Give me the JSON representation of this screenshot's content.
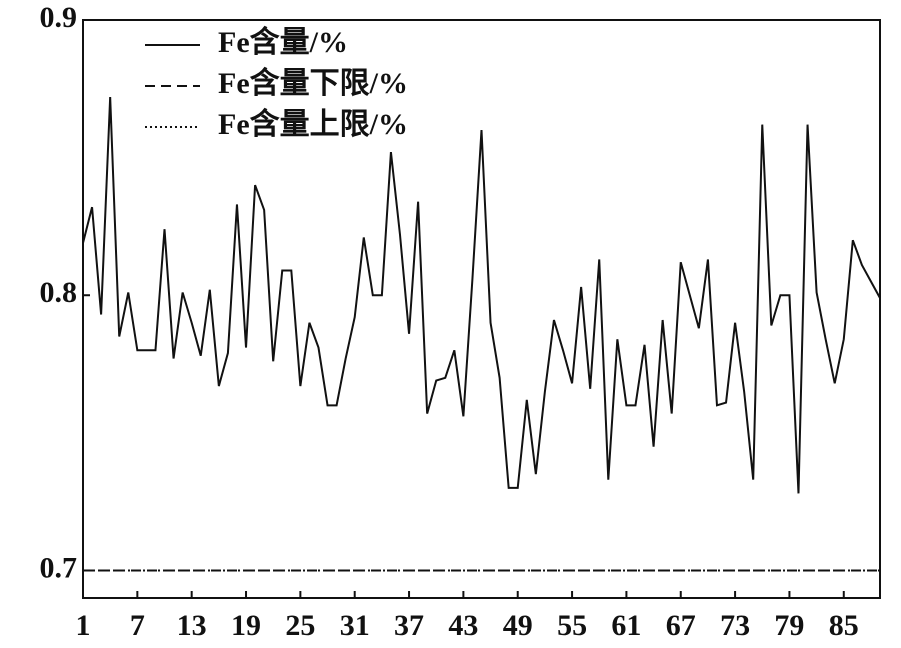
{
  "chart_data": {
    "type": "line",
    "x": [
      1,
      2,
      3,
      4,
      5,
      6,
      7,
      8,
      9,
      10,
      11,
      12,
      13,
      14,
      15,
      16,
      17,
      18,
      19,
      20,
      21,
      22,
      23,
      24,
      25,
      26,
      27,
      28,
      29,
      30,
      31,
      32,
      33,
      34,
      35,
      36,
      37,
      38,
      39,
      40,
      41,
      42,
      43,
      44,
      45,
      46,
      47,
      48,
      49,
      50,
      51,
      52,
      53,
      54,
      55,
      56,
      57,
      58,
      59,
      60,
      61,
      62,
      63,
      64,
      65,
      66,
      67,
      68,
      69,
      70,
      71,
      72,
      73,
      74,
      75,
      76,
      77,
      78,
      79,
      80,
      81,
      82,
      83,
      84,
      85,
      86,
      87,
      88,
      89
    ],
    "series": [
      {
        "name": "Fe含量/%",
        "color": "#111111",
        "dash": "solid",
        "values": [
          0.819,
          0.832,
          0.793,
          0.872,
          0.785,
          0.801,
          0.78,
          0.78,
          0.78,
          0.824,
          0.777,
          0.801,
          0.79,
          0.778,
          0.802,
          0.767,
          0.779,
          0.833,
          0.781,
          0.84,
          0.831,
          0.776,
          0.809,
          0.809,
          0.767,
          0.79,
          0.781,
          0.76,
          0.76,
          0.777,
          0.792,
          0.821,
          0.8,
          0.8,
          0.852,
          0.822,
          0.786,
          0.834,
          0.757,
          0.769,
          0.77,
          0.78,
          0.756,
          0.806,
          0.86,
          0.79,
          0.77,
          0.73,
          0.73,
          0.762,
          0.735,
          0.765,
          0.791,
          0.78,
          0.768,
          0.803,
          0.766,
          0.813,
          0.733,
          0.784,
          0.76,
          0.76,
          0.782,
          0.745,
          0.791,
          0.757,
          0.812,
          0.8,
          0.788,
          0.813,
          0.76,
          0.761,
          0.79,
          0.765,
          0.733,
          0.862,
          0.789,
          0.8,
          0.8,
          0.728,
          0.862,
          0.801,
          0.784,
          0.768,
          0.784,
          0.82,
          0.811,
          0.805,
          0.799
        ]
      },
      {
        "name": "Fe含量下限/%",
        "color": "#111111",
        "dash": "dashed",
        "values": [
          0.7,
          0.7,
          0.7,
          0.7,
          0.7,
          0.7,
          0.7,
          0.7,
          0.7,
          0.7,
          0.7,
          0.7,
          0.7,
          0.7,
          0.7,
          0.7,
          0.7,
          0.7,
          0.7,
          0.7,
          0.7,
          0.7,
          0.7,
          0.7,
          0.7,
          0.7,
          0.7,
          0.7,
          0.7,
          0.7,
          0.7,
          0.7,
          0.7,
          0.7,
          0.7,
          0.7,
          0.7,
          0.7,
          0.7,
          0.7,
          0.7,
          0.7,
          0.7,
          0.7,
          0.7,
          0.7,
          0.7,
          0.7,
          0.7,
          0.7,
          0.7,
          0.7,
          0.7,
          0.7,
          0.7,
          0.7,
          0.7,
          0.7,
          0.7,
          0.7,
          0.7,
          0.7,
          0.7,
          0.7,
          0.7,
          0.7,
          0.7,
          0.7,
          0.7,
          0.7,
          0.7,
          0.7,
          0.7,
          0.7,
          0.7,
          0.7,
          0.7,
          0.7,
          0.7,
          0.7,
          0.7,
          0.7,
          0.7,
          0.7,
          0.7,
          0.7,
          0.7,
          0.7,
          0.7
        ]
      },
      {
        "name": "Fe含量上限/%",
        "color": "#111111",
        "dash": "dotted",
        "values": [
          0.7,
          0.7,
          0.7,
          0.7,
          0.7,
          0.7,
          0.7,
          0.7,
          0.7,
          0.7,
          0.7,
          0.7,
          0.7,
          0.7,
          0.7,
          0.7,
          0.7,
          0.7,
          0.7,
          0.7,
          0.7,
          0.7,
          0.7,
          0.7,
          0.7,
          0.7,
          0.7,
          0.7,
          0.7,
          0.7,
          0.7,
          0.7,
          0.7,
          0.7,
          0.7,
          0.7,
          0.7,
          0.7,
          0.7,
          0.7,
          0.7,
          0.7,
          0.7,
          0.7,
          0.7,
          0.7,
          0.7,
          0.7,
          0.7,
          0.7,
          0.7,
          0.7,
          0.7,
          0.7,
          0.7,
          0.7,
          0.7,
          0.7,
          0.7,
          0.7,
          0.7,
          0.7,
          0.7,
          0.7,
          0.7,
          0.7,
          0.7,
          0.7,
          0.7,
          0.7,
          0.7,
          0.7,
          0.7,
          0.7,
          0.7,
          0.7,
          0.7,
          0.7,
          0.7,
          0.7,
          0.7,
          0.7,
          0.7,
          0.7,
          0.7,
          0.7,
          0.7,
          0.7,
          0.7
        ]
      }
    ],
    "xlim": [
      1,
      89
    ],
    "xticks": [
      1,
      7,
      13,
      19,
      25,
      31,
      37,
      43,
      49,
      55,
      61,
      67,
      73,
      79,
      85
    ],
    "ylim": [
      0.69,
      0.9
    ],
    "yticks": [
      0.7,
      0.8,
      0.9
    ],
    "legend": "upper-left"
  }
}
